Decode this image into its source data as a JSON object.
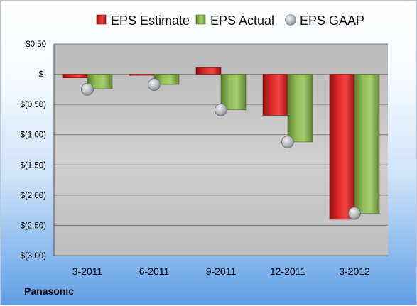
{
  "company": "Panasonic",
  "chart_data": {
    "type": "bar",
    "categories": [
      "3-2011",
      "6-2011",
      "9-2011",
      "12-2011",
      "3-2012"
    ],
    "series": [
      {
        "name": "EPS Estimate",
        "type": "bar",
        "color": "#cc1f1f",
        "values": [
          -0.06,
          -0.01,
          0.11,
          -0.68,
          -2.4
        ]
      },
      {
        "name": "EPS Actual",
        "type": "bar",
        "color": "#7fa94a",
        "values": [
          -0.24,
          -0.17,
          -0.59,
          -1.12,
          -2.3
        ]
      },
      {
        "name": "EPS GAAP",
        "type": "marker",
        "color": "#b8bcc2",
        "values": [
          -0.25,
          -0.17,
          -0.59,
          -1.12,
          -2.3
        ]
      }
    ],
    "yticks": [
      0.5,
      0,
      -0.5,
      -1.0,
      -1.5,
      -2.0,
      -2.5,
      -3.0
    ],
    "ytick_labels": [
      "$0.50",
      "$-",
      "$(0.50)",
      "$(1.00)",
      "$(1.50)",
      "$(2.00)",
      "$(2.50)",
      "$(3.00)"
    ],
    "ylim": [
      -3.0,
      0.5
    ],
    "grid": true,
    "legend_position": "top"
  }
}
